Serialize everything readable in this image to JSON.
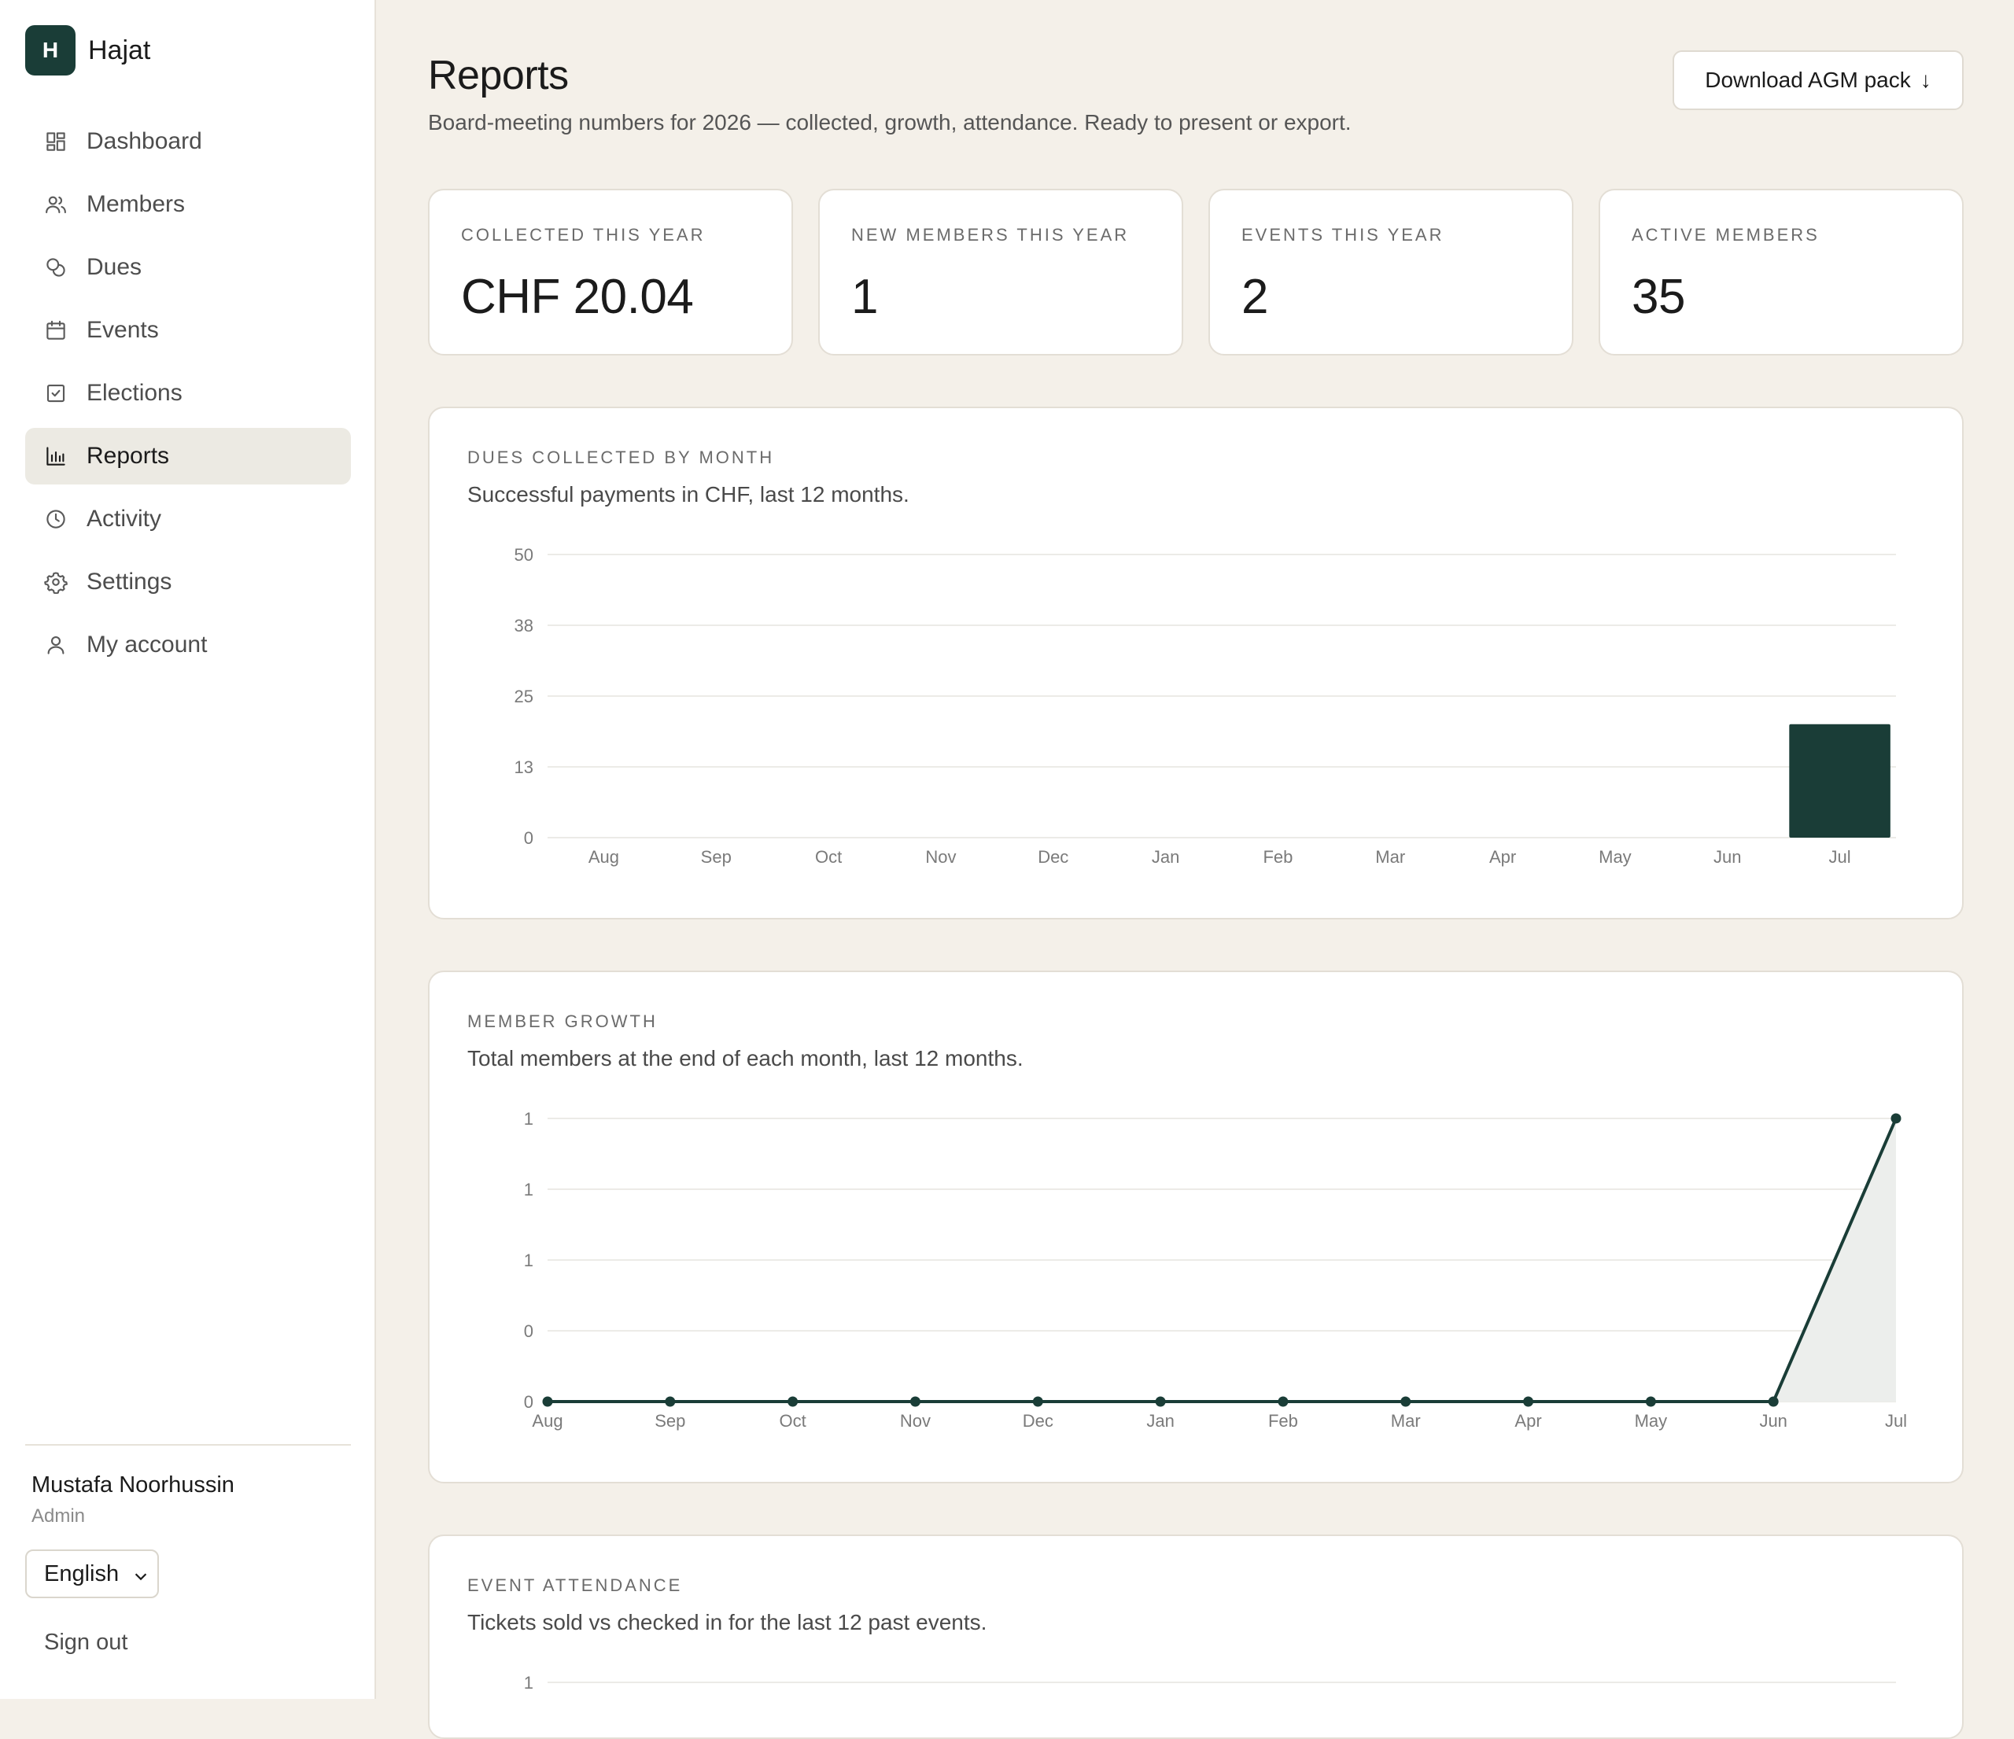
{
  "app": {
    "logo_letter": "H",
    "name": "Hajat"
  },
  "nav": [
    {
      "label": "Dashboard",
      "icon": "dashboard-icon",
      "active": false
    },
    {
      "label": "Members",
      "icon": "members-icon",
      "active": false
    },
    {
      "label": "Dues",
      "icon": "coins-icon",
      "active": false
    },
    {
      "label": "Events",
      "icon": "calendar-icon",
      "active": false
    },
    {
      "label": "Elections",
      "icon": "checkbox-icon",
      "active": false
    },
    {
      "label": "Reports",
      "icon": "bar-chart-icon",
      "active": true
    },
    {
      "label": "Activity",
      "icon": "clock-icon",
      "active": false
    },
    {
      "label": "Settings",
      "icon": "gear-icon",
      "active": false
    },
    {
      "label": "My account",
      "icon": "user-icon",
      "active": false
    }
  ],
  "user": {
    "name": "Mustafa Noorhussin",
    "role": "Admin",
    "language": "English",
    "sign_out": "Sign out"
  },
  "page": {
    "title": "Reports",
    "subtitle": "Board-meeting numbers for 2026 — collected, growth, attendance. Ready to present or export.",
    "download_label": "Download AGM pack",
    "download_icon": "↓"
  },
  "stats": [
    {
      "label": "COLLECTED THIS YEAR",
      "value": "CHF 20.04"
    },
    {
      "label": "NEW MEMBERS THIS YEAR",
      "value": "1"
    },
    {
      "label": "EVENTS THIS YEAR",
      "value": "2"
    },
    {
      "label": "ACTIVE MEMBERS",
      "value": "35"
    }
  ],
  "panels": {
    "dues": {
      "label": "DUES COLLECTED BY MONTH",
      "subtitle": "Successful payments in CHF, last 12 months."
    },
    "growth": {
      "label": "MEMBER GROWTH",
      "subtitle": "Total members at the end of each month, last 12 months."
    },
    "attendance": {
      "label": "EVENT ATTENDANCE",
      "subtitle": "Tickets sold vs checked in for the last 12 past events."
    }
  },
  "colors": {
    "accent": "#1a3d37",
    "area_fill": "#eceeec",
    "background": "#f4f0e9"
  },
  "chart_data": [
    {
      "type": "bar",
      "title": "DUES COLLECTED BY MONTH",
      "categories": [
        "Aug",
        "Sep",
        "Oct",
        "Nov",
        "Dec",
        "Jan",
        "Feb",
        "Mar",
        "Apr",
        "May",
        "Jun",
        "Jul"
      ],
      "values": [
        0,
        0,
        0,
        0,
        0,
        0,
        0,
        0,
        0,
        0,
        0,
        20.04
      ],
      "ylim": [
        0,
        50
      ],
      "yticks": [
        "50",
        "38",
        "25",
        "13",
        "0"
      ],
      "grid": true
    },
    {
      "type": "area",
      "title": "MEMBER GROWTH",
      "categories": [
        "Aug",
        "Sep",
        "Oct",
        "Nov",
        "Dec",
        "Jan",
        "Feb",
        "Mar",
        "Apr",
        "May",
        "Jun",
        "Jul"
      ],
      "values": [
        0,
        0,
        0,
        0,
        0,
        0,
        0,
        0,
        0,
        0,
        0,
        1
      ],
      "ylim": [
        0,
        1
      ],
      "yticks": [
        "1",
        "1",
        "1",
        "0",
        "0"
      ],
      "grid": true
    },
    {
      "type": "bar",
      "title": "EVENT ATTENDANCE",
      "yticks": [
        "1"
      ],
      "grid": true
    }
  ]
}
